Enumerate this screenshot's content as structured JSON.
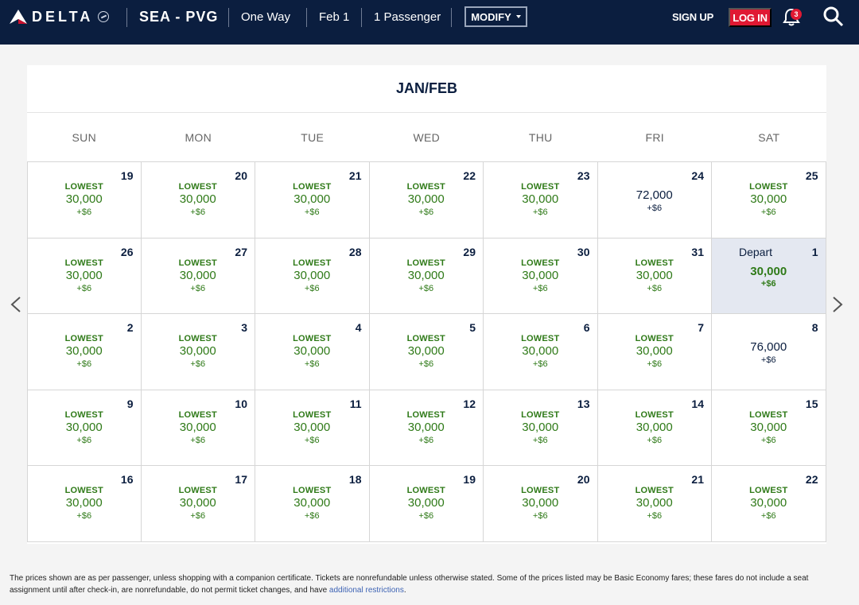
{
  "header": {
    "logo_text": "DELTA",
    "route": "SEA - PVG",
    "trip_type": "One Way",
    "date": "Feb 1",
    "passengers": "1 Passenger",
    "modify_label": "MODIFY",
    "signup_label": "SIGN UP",
    "login_label": "LOG IN",
    "notification_count": "3"
  },
  "calendar": {
    "month_label": "JAN/FEB",
    "weekdays": [
      "SUN",
      "MON",
      "TUE",
      "WED",
      "THU",
      "FRI",
      "SAT"
    ],
    "lowest_label": "LOWEST",
    "depart_label": "Depart",
    "days": [
      {
        "day": "19",
        "price": "30,000",
        "fee": "+$6",
        "lowest": true
      },
      {
        "day": "20",
        "price": "30,000",
        "fee": "+$6",
        "lowest": true
      },
      {
        "day": "21",
        "price": "30,000",
        "fee": "+$6",
        "lowest": true
      },
      {
        "day": "22",
        "price": "30,000",
        "fee": "+$6",
        "lowest": true
      },
      {
        "day": "23",
        "price": "30,000",
        "fee": "+$6",
        "lowest": true
      },
      {
        "day": "24",
        "price": "72,000",
        "fee": "+$6",
        "lowest": false
      },
      {
        "day": "25",
        "price": "30,000",
        "fee": "+$6",
        "lowest": true
      },
      {
        "day": "26",
        "price": "30,000",
        "fee": "+$6",
        "lowest": true
      },
      {
        "day": "27",
        "price": "30,000",
        "fee": "+$6",
        "lowest": true
      },
      {
        "day": "28",
        "price": "30,000",
        "fee": "+$6",
        "lowest": true
      },
      {
        "day": "29",
        "price": "30,000",
        "fee": "+$6",
        "lowest": true
      },
      {
        "day": "30",
        "price": "30,000",
        "fee": "+$6",
        "lowest": true
      },
      {
        "day": "31",
        "price": "30,000",
        "fee": "+$6",
        "lowest": true
      },
      {
        "day": "1",
        "price": "30,000",
        "fee": "+$6",
        "lowest": false,
        "selected": true
      },
      {
        "day": "2",
        "price": "30,000",
        "fee": "+$6",
        "lowest": true
      },
      {
        "day": "3",
        "price": "30,000",
        "fee": "+$6",
        "lowest": true
      },
      {
        "day": "4",
        "price": "30,000",
        "fee": "+$6",
        "lowest": true
      },
      {
        "day": "5",
        "price": "30,000",
        "fee": "+$6",
        "lowest": true
      },
      {
        "day": "6",
        "price": "30,000",
        "fee": "+$6",
        "lowest": true
      },
      {
        "day": "7",
        "price": "30,000",
        "fee": "+$6",
        "lowest": true
      },
      {
        "day": "8",
        "price": "76,000",
        "fee": "+$6",
        "lowest": false
      },
      {
        "day": "9",
        "price": "30,000",
        "fee": "+$6",
        "lowest": true
      },
      {
        "day": "10",
        "price": "30,000",
        "fee": "+$6",
        "lowest": true
      },
      {
        "day": "11",
        "price": "30,000",
        "fee": "+$6",
        "lowest": true
      },
      {
        "day": "12",
        "price": "30,000",
        "fee": "+$6",
        "lowest": true
      },
      {
        "day": "13",
        "price": "30,000",
        "fee": "+$6",
        "lowest": true
      },
      {
        "day": "14",
        "price": "30,000",
        "fee": "+$6",
        "lowest": true
      },
      {
        "day": "15",
        "price": "30,000",
        "fee": "+$6",
        "lowest": true
      },
      {
        "day": "16",
        "price": "30,000",
        "fee": "+$6",
        "lowest": true
      },
      {
        "day": "17",
        "price": "30,000",
        "fee": "+$6",
        "lowest": true
      },
      {
        "day": "18",
        "price": "30,000",
        "fee": "+$6",
        "lowest": true
      },
      {
        "day": "19",
        "price": "30,000",
        "fee": "+$6",
        "lowest": true
      },
      {
        "day": "20",
        "price": "30,000",
        "fee": "+$6",
        "lowest": true
      },
      {
        "day": "21",
        "price": "30,000",
        "fee": "+$6",
        "lowest": true
      },
      {
        "day": "22",
        "price": "30,000",
        "fee": "+$6",
        "lowest": true
      }
    ]
  },
  "footer": {
    "disclaimer": "The prices shown are as per passenger, unless shopping with a companion certificate. Tickets are nonrefundable unless otherwise stated. Some of the prices listed may be Basic Economy fares; these fares do not include a seat assignment until after check-in, are nonrefundable, do not permit ticket changes, and have ",
    "link_text": "additional restrictions",
    "end": "."
  },
  "icons": {
    "logo": "delta-widget-icon",
    "bell": "bell-icon",
    "search": "search-icon",
    "prev": "chevron-left-icon",
    "next": "chevron-right-icon"
  },
  "colors": {
    "header_bg": "#0b1e3f",
    "login_red": "#e01933",
    "price_green": "#2f7a18",
    "selected_bg": "#e4e8f1"
  }
}
